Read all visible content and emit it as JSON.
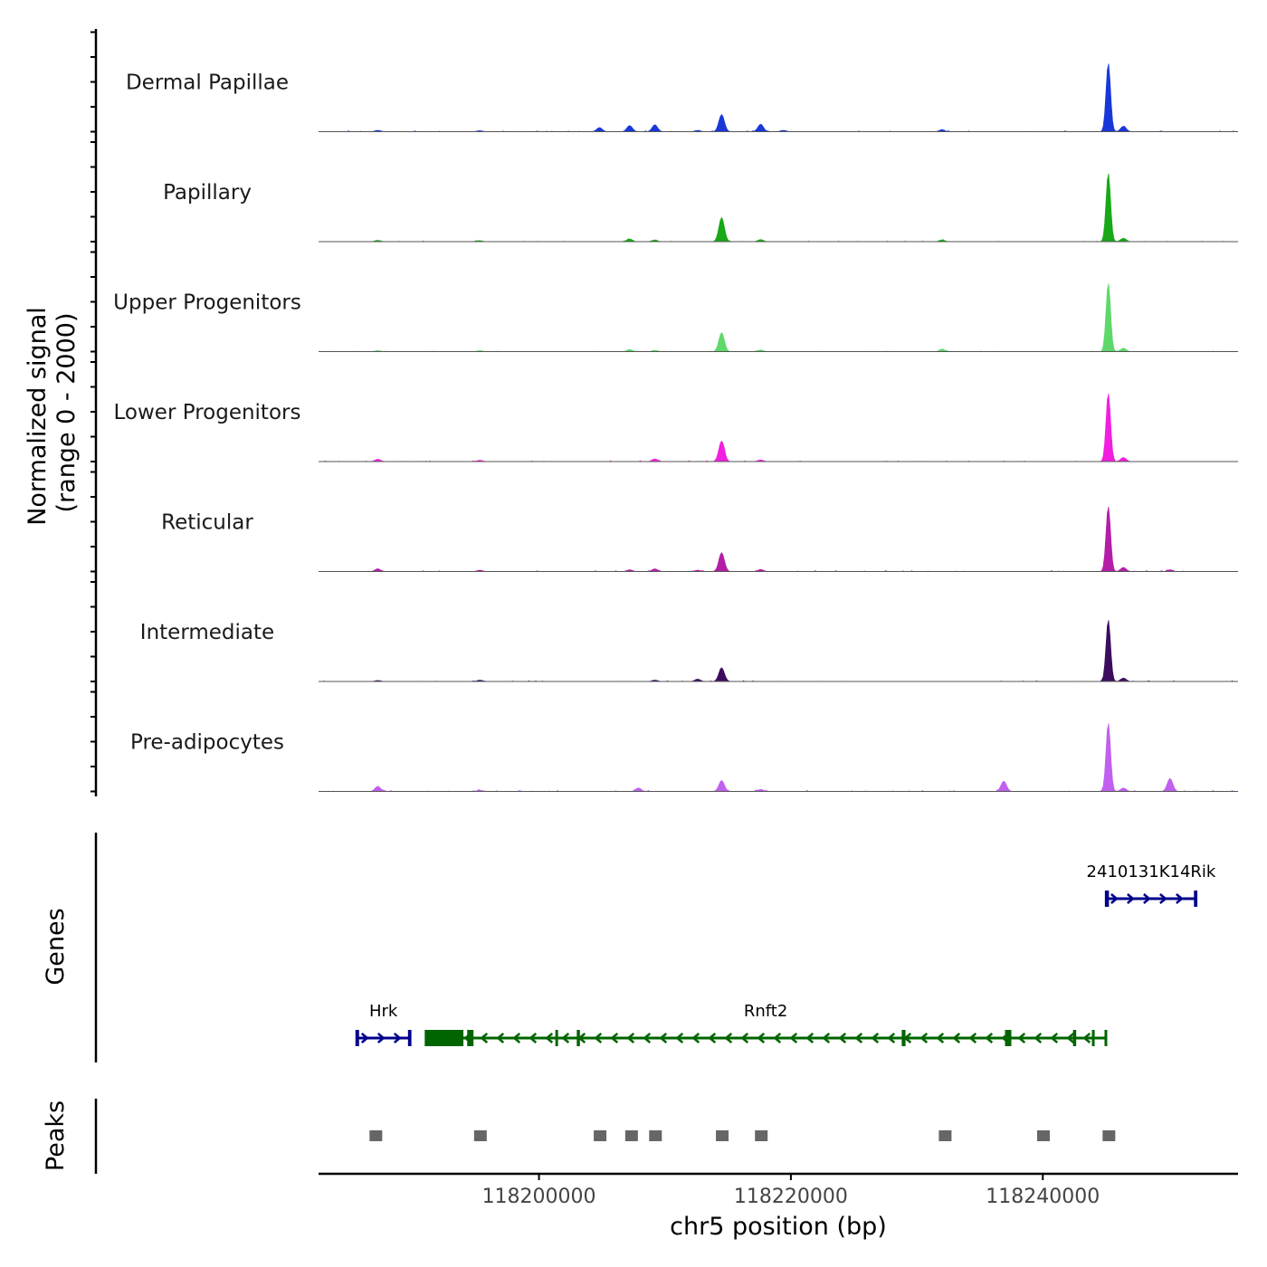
{
  "chart_data": {
    "type": "area",
    "title": "",
    "ylabel": [
      "Normalized signal",
      "(range 0 - 2000)"
    ],
    "xlabel": "chr5 position (bp)",
    "ylim": [
      0,
      2000
    ],
    "xlim": [
      118182500,
      118255500
    ],
    "x_ticks": [
      118200000,
      118220000,
      118240000
    ],
    "x_tick_labels": [
      "118200000",
      "118220000",
      "118240000"
    ],
    "tracks": [
      {
        "name": "Dermal Papillae",
        "color": "#1838d8",
        "peaks": [
          [
            118187200,
            40
          ],
          [
            118195300,
            30
          ],
          [
            118204800,
            120
          ],
          [
            118207200,
            180
          ],
          [
            118209200,
            200
          ],
          [
            118212600,
            40
          ],
          [
            118214500,
            500
          ],
          [
            118217600,
            220
          ],
          [
            118219400,
            40
          ],
          [
            118232000,
            60
          ],
          [
            118245200,
            2000
          ],
          [
            118246400,
            160
          ]
        ],
        "noise": 14
      },
      {
        "name": "Papillary",
        "color": "#18a818",
        "peaks": [
          [
            118187200,
            40
          ],
          [
            118195300,
            30
          ],
          [
            118207200,
            80
          ],
          [
            118209200,
            50
          ],
          [
            118214500,
            700
          ],
          [
            118217600,
            60
          ],
          [
            118232000,
            50
          ],
          [
            118245200,
            2000
          ],
          [
            118246400,
            100
          ]
        ],
        "noise": 10
      },
      {
        "name": "Upper Progenitors",
        "color": "#5ed86a",
        "peaks": [
          [
            118187200,
            30
          ],
          [
            118195300,
            30
          ],
          [
            118207200,
            60
          ],
          [
            118209200,
            40
          ],
          [
            118214500,
            550
          ],
          [
            118217600,
            50
          ],
          [
            118232000,
            70
          ],
          [
            118245200,
            2000
          ],
          [
            118246400,
            100
          ]
        ],
        "noise": 10
      },
      {
        "name": "Lower Progenitors",
        "color": "#f21ee0",
        "peaks": [
          [
            118187200,
            70
          ],
          [
            118195300,
            40
          ],
          [
            118209200,
            80
          ],
          [
            118214500,
            600
          ],
          [
            118217600,
            50
          ],
          [
            118245200,
            2000
          ],
          [
            118246400,
            120
          ]
        ],
        "noise": 14
      },
      {
        "name": "Reticular",
        "color": "#b41ea6",
        "peaks": [
          [
            118187200,
            80
          ],
          [
            118195300,
            40
          ],
          [
            118207200,
            50
          ],
          [
            118209200,
            80
          ],
          [
            118212600,
            40
          ],
          [
            118214500,
            550
          ],
          [
            118217600,
            60
          ],
          [
            118245200,
            1900
          ],
          [
            118246400,
            120
          ],
          [
            118250100,
            50
          ]
        ],
        "noise": 14
      },
      {
        "name": "Intermediate",
        "color": "#3c0c5e",
        "peaks": [
          [
            118187200,
            30
          ],
          [
            118195300,
            40
          ],
          [
            118209200,
            40
          ],
          [
            118212600,
            70
          ],
          [
            118214500,
            400
          ],
          [
            118245200,
            1800
          ],
          [
            118246400,
            100
          ]
        ],
        "noise": 12
      },
      {
        "name": "Pre-adipocytes",
        "color": "#c060f0",
        "peaks": [
          [
            118187200,
            150
          ],
          [
            118195300,
            40
          ],
          [
            118207900,
            100
          ],
          [
            118214500,
            320
          ],
          [
            118217600,
            60
          ],
          [
            118236900,
            300
          ],
          [
            118245200,
            2000
          ],
          [
            118246400,
            100
          ],
          [
            118250100,
            380
          ]
        ],
        "noise": 16
      }
    ],
    "genes_label": "Genes",
    "genes": [
      {
        "name": "2410131K14Rik",
        "start": 118245000,
        "end": 118252200,
        "strand": "+",
        "color": "#00008b",
        "row": 0,
        "exons": [
          [
            118245000,
            118245250
          ],
          [
            118252000,
            118252200
          ]
        ]
      },
      {
        "name": "Hrk",
        "start": 118185500,
        "end": 118189800,
        "strand": "+",
        "color": "#00008b",
        "row": 1,
        "exons": [
          [
            118185500,
            118185700
          ],
          [
            118189600,
            118189800
          ]
        ]
      },
      {
        "name": "Rnft2",
        "start": 118191000,
        "end": 118245000,
        "strand": "-",
        "color": "#006400",
        "row": 1,
        "exons": [
          [
            118191000,
            118194000
          ],
          [
            118194300,
            118194800
          ],
          [
            118201300,
            118201500
          ],
          [
            118203000,
            118203250
          ],
          [
            118228800,
            118229100
          ],
          [
            118237000,
            118237500
          ],
          [
            118242400,
            118242650
          ],
          [
            118243900,
            118244100
          ],
          [
            118244900,
            118245000
          ]
        ]
      }
    ],
    "peaks_label": "Peaks",
    "peaks": [
      [
        118186300,
        118187800
      ],
      [
        118194600,
        118196100
      ],
      [
        118204100,
        118205600
      ],
      [
        118206600,
        118208100
      ],
      [
        118208500,
        118210000
      ],
      [
        118213800,
        118215300
      ],
      [
        118216900,
        118218400
      ],
      [
        118231500,
        118233000
      ],
      [
        118239300,
        118240800
      ],
      [
        118244500,
        118246000
      ]
    ],
    "peak_color": "#666666"
  }
}
